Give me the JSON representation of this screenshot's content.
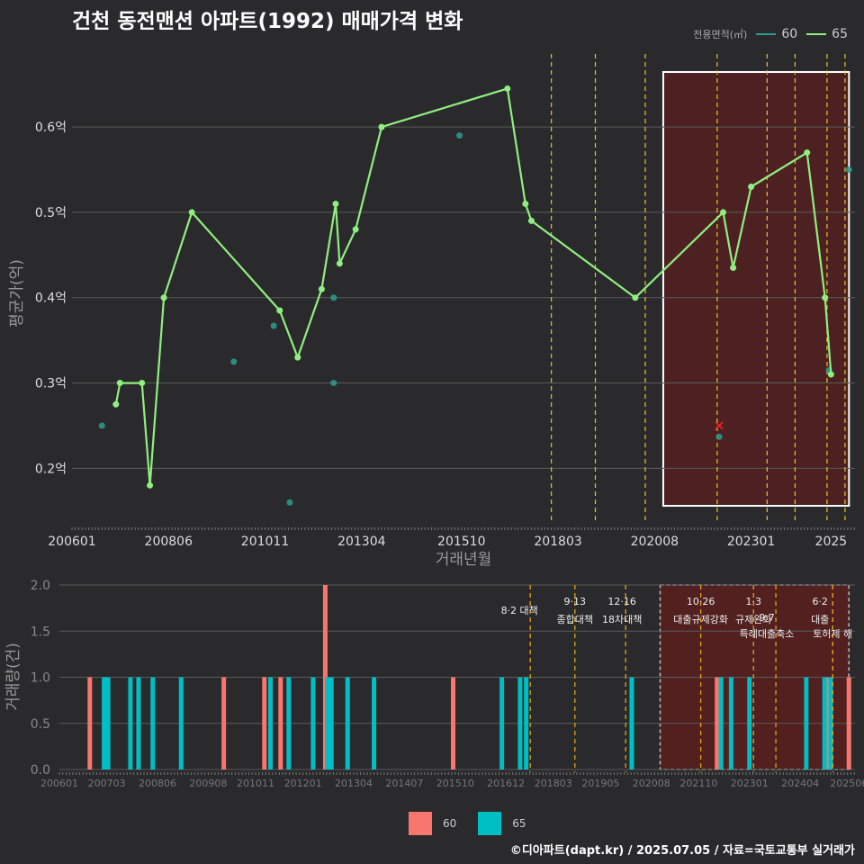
{
  "title": "건천 동전맨션 아파트(1992) 매매가격 변화",
  "caption": "©디아파트(dapt.kr) / 2025.07.05 / 자료=국토교통부 실거래가",
  "colors": {
    "s60": "#2a9d8f",
    "s65": "#90ee80",
    "bar60": "#f8766d",
    "bar65": "#00bfc4",
    "policy": "#e6c229",
    "highlight": "#5a1f1f"
  },
  "legend_top": {
    "title": "전용면적(㎡)",
    "items": [
      "60",
      "65"
    ]
  },
  "legend_bottom": {
    "items": [
      "60",
      "65"
    ]
  },
  "chart_data": [
    {
      "type": "line",
      "title": "건천 동전맨션 아파트(1992) 매매가격 변화",
      "xlabel": "거래년월",
      "ylabel": "평균가(억)",
      "xlim": [
        2006.0,
        2025.6
      ],
      "ylim": [
        0.135,
        0.675
      ],
      "x_ticks": [
        {
          "x": 2006.0,
          "label": "200601"
        },
        {
          "x": 2008.417,
          "label": "200806"
        },
        {
          "x": 2010.833,
          "label": "201011"
        },
        {
          "x": 2013.25,
          "label": "201304"
        },
        {
          "x": 2015.75,
          "label": "201510"
        },
        {
          "x": 2018.167,
          "label": "201803"
        },
        {
          "x": 2020.583,
          "label": "202008"
        },
        {
          "x": 2023.0,
          "label": "202301"
        },
        {
          "x": 2025.0,
          "label": "2025"
        }
      ],
      "y_ticks": [
        {
          "y": 0.2,
          "label": "0.2억"
        },
        {
          "y": 0.3,
          "label": "0.3억"
        },
        {
          "y": 0.4,
          "label": "0.4억"
        },
        {
          "y": 0.5,
          "label": "0.5억"
        },
        {
          "y": 0.6,
          "label": "0.6억"
        }
      ],
      "series": [
        {
          "name": "65",
          "points": [
            [
              2007.1,
              0.275
            ],
            [
              2007.2,
              0.3
            ],
            [
              2007.75,
              0.3
            ],
            [
              2007.95,
              0.18
            ],
            [
              2008.3,
              0.4
            ],
            [
              2009.0,
              0.5
            ],
            [
              2011.2,
              0.385
            ],
            [
              2011.65,
              0.33
            ],
            [
              2012.25,
              0.41
            ],
            [
              2012.6,
              0.51
            ],
            [
              2012.7,
              0.44
            ],
            [
              2013.1,
              0.48
            ],
            [
              2013.75,
              0.6
            ],
            [
              2016.9,
              0.645
            ],
            [
              2017.35,
              0.51
            ],
            [
              2017.5,
              0.49
            ],
            [
              2020.1,
              0.4
            ],
            [
              2022.3,
              0.5
            ],
            [
              2022.55,
              0.435
            ],
            [
              2023.0,
              0.53
            ],
            [
              2024.4,
              0.57
            ],
            [
              2024.85,
              0.4
            ],
            [
              2025.0,
              0.31
            ]
          ]
        },
        {
          "name": "60",
          "points": [
            [
              2006.75,
              0.25
            ],
            [
              2010.05,
              0.325
            ],
            [
              2011.05,
              0.367
            ],
            [
              2011.45,
              0.16
            ],
            [
              2012.55,
              0.4
            ],
            [
              2012.55,
              0.3
            ],
            [
              2015.7,
              0.59
            ],
            [
              2022.2,
              0.237
            ],
            [
              2024.95,
              0.315
            ],
            [
              2025.45,
              0.55
            ]
          ]
        }
      ],
      "annotations": {
        "marker": [
          2022.2,
          0.25
        ],
        "highlight_x": [
          2020.8,
          2025.45
        ]
      },
      "policy_lines": [
        2018.0,
        2019.1,
        2020.35,
        2022.15,
        2023.4,
        2024.1,
        2024.9,
        2025.35
      ]
    },
    {
      "type": "bar",
      "xlabel": "",
      "ylabel": "거래량(건)",
      "xlim": [
        2006.0,
        2025.6
      ],
      "ylim": [
        0,
        2.0
      ],
      "x_ticks": [
        {
          "x": 2006.0,
          "label": "200601"
        },
        {
          "x": 2007.167,
          "label": "200703"
        },
        {
          "x": 2008.417,
          "label": "200806"
        },
        {
          "x": 2009.667,
          "label": "200908"
        },
        {
          "x": 2010.833,
          "label": "201011"
        },
        {
          "x": 2012.0,
          "label": "201201"
        },
        {
          "x": 2013.25,
          "label": "201304"
        },
        {
          "x": 2014.5,
          "label": "201407"
        },
        {
          "x": 2015.75,
          "label": "201510"
        },
        {
          "x": 2017.0,
          "label": "201612"
        },
        {
          "x": 2018.167,
          "label": "201803"
        },
        {
          "x": 2019.333,
          "label": "201905"
        },
        {
          "x": 2020.583,
          "label": "202008"
        },
        {
          "x": 2021.75,
          "label": "202110"
        },
        {
          "x": 2023.0,
          "label": "202301"
        },
        {
          "x": 2024.25,
          "label": "202404"
        },
        {
          "x": 2025.45,
          "label": "202506"
        }
      ],
      "y_ticks": [
        {
          "y": 0.0,
          "label": "0.0"
        },
        {
          "y": 0.5,
          "label": "0.5"
        },
        {
          "y": 1.0,
          "label": "1.0"
        },
        {
          "y": 1.5,
          "label": "1.5"
        },
        {
          "y": 2.0,
          "label": "2.0"
        }
      ],
      "series": [
        {
          "name": "60",
          "bars": [
            [
              2006.75,
              1
            ],
            [
              2010.05,
              1
            ],
            [
              2011.05,
              1
            ],
            [
              2011.45,
              1
            ],
            [
              2012.55,
              2
            ],
            [
              2015.7,
              1
            ],
            [
              2022.2,
              1
            ],
            [
              2024.95,
              1
            ],
            [
              2025.45,
              1
            ]
          ]
        },
        {
          "name": "65",
          "bars": [
            [
              2007.1,
              1
            ],
            [
              2007.2,
              1
            ],
            [
              2007.75,
              1
            ],
            [
              2007.95,
              1
            ],
            [
              2008.3,
              1
            ],
            [
              2009.0,
              1
            ],
            [
              2011.2,
              1
            ],
            [
              2011.65,
              1
            ],
            [
              2012.25,
              1
            ],
            [
              2012.6,
              1
            ],
            [
              2012.7,
              1
            ],
            [
              2013.1,
              1
            ],
            [
              2013.75,
              1
            ],
            [
              2016.9,
              1
            ],
            [
              2017.35,
              1
            ],
            [
              2017.5,
              1
            ],
            [
              2020.1,
              1
            ],
            [
              2022.3,
              1
            ],
            [
              2022.55,
              1
            ],
            [
              2023.0,
              1
            ],
            [
              2024.4,
              1
            ],
            [
              2024.85,
              1
            ],
            [
              2025.0,
              1
            ]
          ]
        }
      ],
      "annotations": {
        "highlight_x": [
          2020.8,
          2025.45
        ]
      },
      "policy_lines": [
        {
          "x": 2017.6,
          "date": "",
          "text": "8·2 대책"
        },
        {
          "x": 2018.7,
          "date": "9·13",
          "text": "종합대책"
        },
        {
          "x": 2019.95,
          "date": "12·16",
          "text": "18차대책"
        },
        {
          "x": 2021.8,
          "date": "10·26",
          "text": "대출규제강화"
        },
        {
          "x": 2023.1,
          "date": "1·3",
          "text": "규제완화"
        },
        {
          "x": 2023.65,
          "date": "9·7",
          "text": "특례대출축소"
        },
        {
          "x": 2025.05,
          "date": "6·2",
          "text": "대출"
        },
        {
          "x": 2025.05,
          "date": "",
          "text": "토허제 해"
        }
      ]
    }
  ]
}
